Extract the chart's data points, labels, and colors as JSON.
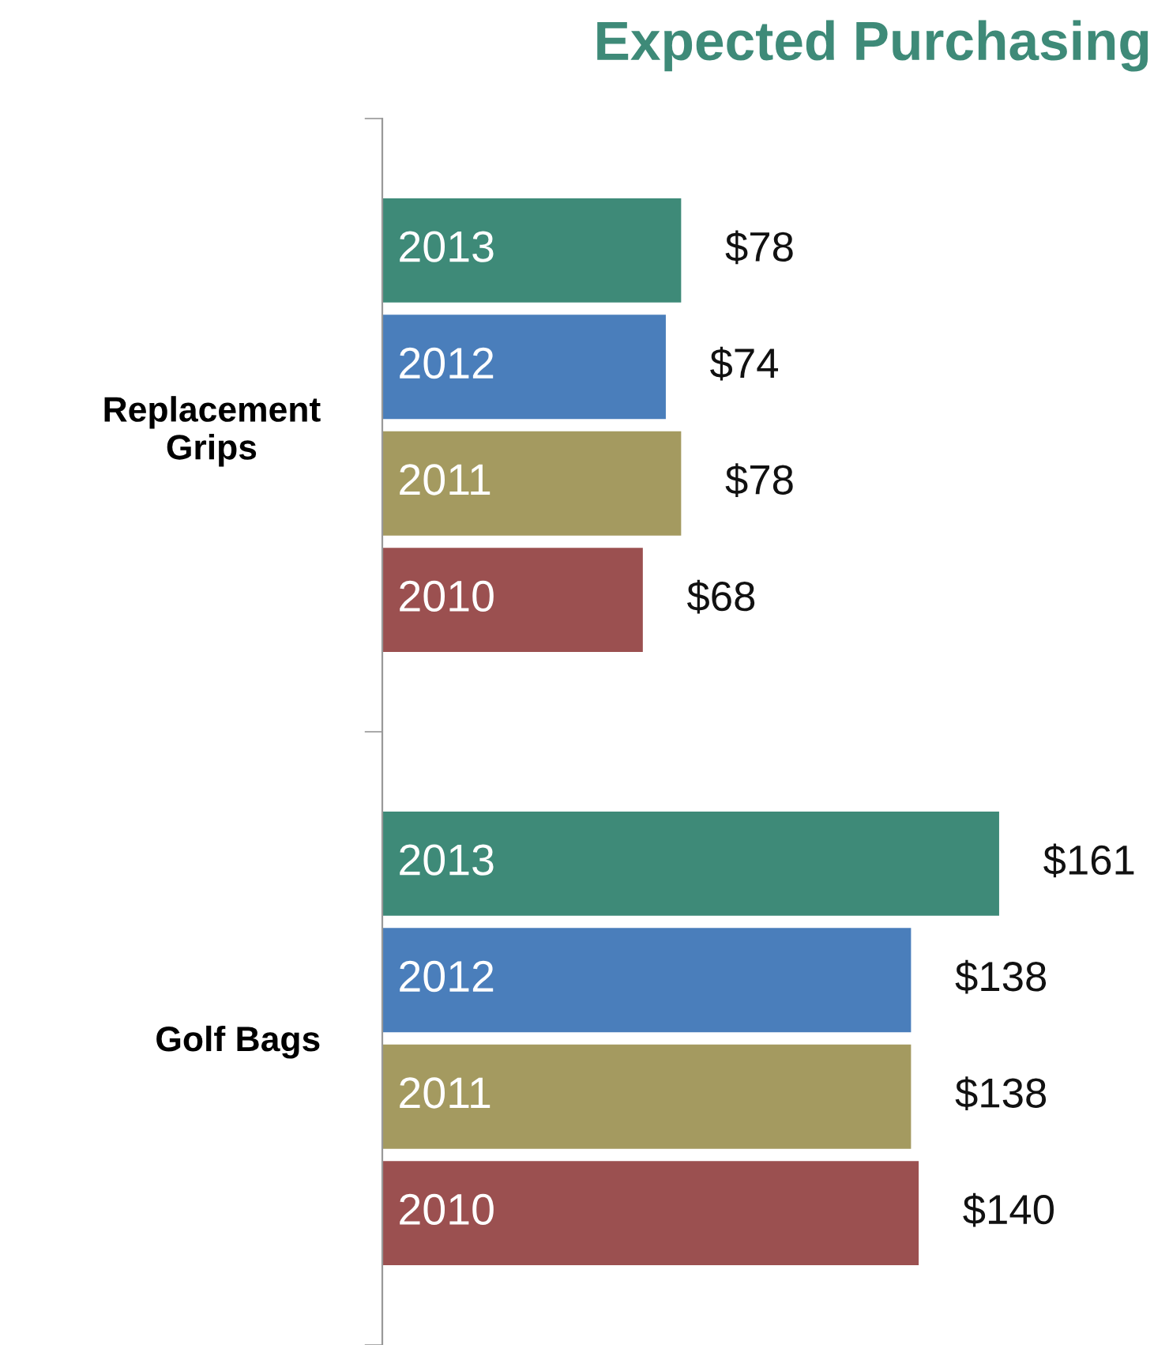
{
  "chart_data": {
    "type": "bar",
    "orientation": "horizontal",
    "title": "Expected Purchasing",
    "categories": [
      "Replacement Grips",
      "Golf Bags"
    ],
    "series": [
      {
        "name": "2013",
        "color": "#3e8a78",
        "values": [
          78,
          161
        ],
        "value_labels": [
          "$78",
          "$161"
        ]
      },
      {
        "name": "2012",
        "color": "#4a7ebb",
        "values": [
          74,
          138
        ],
        "value_labels": [
          "$74",
          "$138"
        ]
      },
      {
        "name": "2011",
        "color": "#a49a60",
        "values": [
          78,
          138
        ],
        "value_labels": [
          "$78",
          "$138"
        ]
      },
      {
        "name": "2010",
        "color": "#9b5050",
        "values": [
          68,
          140
        ],
        "value_labels": [
          "$68",
          "$140"
        ]
      }
    ],
    "tick_labels": "y",
    "grid": false,
    "legend": false
  }
}
